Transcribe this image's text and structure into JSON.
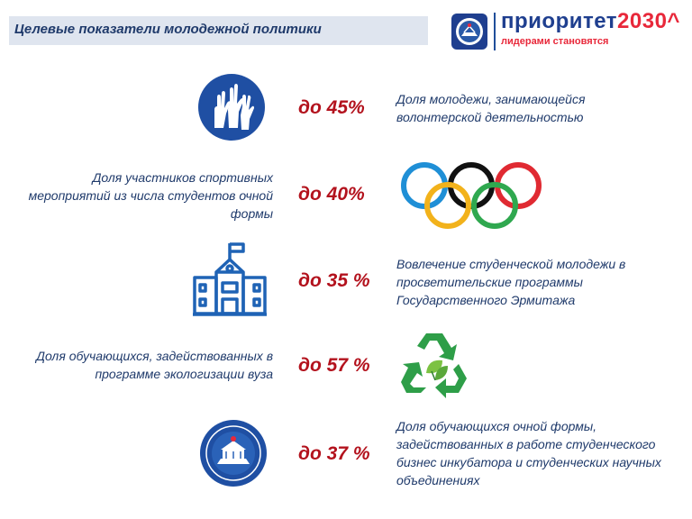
{
  "header": {
    "title": "Целевые показатели молодежной политики",
    "logo": {
      "brand": "приоритет",
      "brand_number": "2030",
      "brand_mark": "^",
      "tagline": "лидерами становятся",
      "emblem_icon": "university-emblem-icon"
    }
  },
  "indicators": [
    {
      "value": "до 45%",
      "text": "Доля молодежи, занимающейся волонтерской деятельностью",
      "icon": "raised-hands-icon"
    },
    {
      "value": "до 40%",
      "text": "Доля участников спортивных мероприятий из числа студентов очной формы",
      "icon": "olympic-rings-icon"
    },
    {
      "value": "до 35 %",
      "text": "Вовлечение студенческой молодежи в просветительские программы Государственного Эрмитажа",
      "icon": "museum-building-icon"
    },
    {
      "value": "до 57 %",
      "text": "Доля обучающихся, задействованных в программе экологизации вуза",
      "icon": "recycle-leaf-icon"
    },
    {
      "value": "до 37 %",
      "text": "Доля обучающихся очной формы, задействованных в работе студенческого бизнес инкубатора и студенческих научных объединениях",
      "icon": "university-seal-icon"
    }
  ],
  "colors": {
    "navy": "#1f3a6b",
    "value_red": "#b3121d",
    "icon_blue": "#1f63b5",
    "title_band": "#dfe5ef"
  }
}
